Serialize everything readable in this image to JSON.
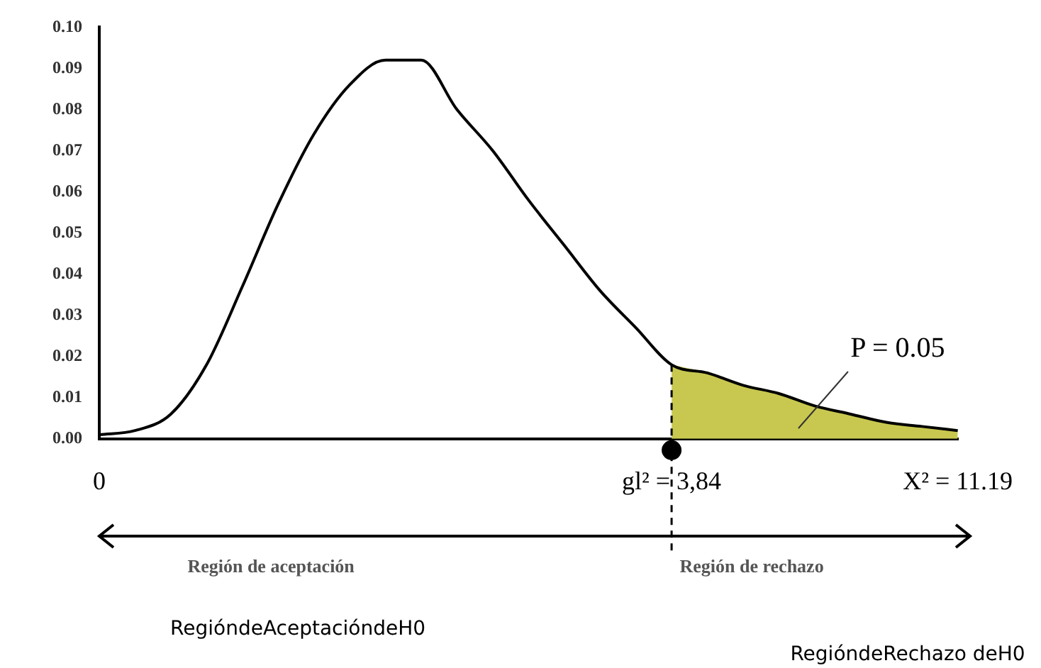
{
  "chart_data": {
    "type": "line",
    "categories": [
      "0",
      null,
      null,
      null,
      null,
      null,
      null,
      null,
      null,
      null,
      null,
      null,
      null,
      null,
      null,
      null,
      "gl² = 3,84",
      null,
      null,
      null,
      null,
      null,
      null,
      null,
      "X² = 11.19"
    ],
    "series": [
      {
        "color": "#000000",
        "values": [
          0.001,
          0.002,
          0.006,
          0.018,
          0.037,
          0.057,
          0.074,
          0.086,
          0.092,
          0.092,
          0.08,
          0.07,
          0.058,
          0.047,
          0.036,
          0.027,
          0.018,
          0.016,
          0.013,
          0.011,
          0.008,
          0.006,
          0.004,
          0.003,
          0.002
        ]
      },
      {
        "type": "area",
        "color": "#c8c850",
        "values": [
          null,
          null,
          null,
          null,
          null,
          null,
          null,
          null,
          null,
          null,
          null,
          null,
          null,
          null,
          null,
          null,
          0.018,
          0.016,
          0.013,
          0.011,
          0.008,
          0.006,
          0.004,
          0.003,
          0.002
        ]
      }
    ],
    "ylim": [
      0,
      0.1
    ],
    "yticks": [
      {
        "value": 0,
        "label": "0.00"
      },
      {
        "value": 0.01,
        "label": "0.01"
      },
      {
        "value": 0.02,
        "label": "0.02"
      },
      {
        "value": 0.03,
        "label": "0.03"
      },
      {
        "value": 0.04,
        "label": "0.04"
      },
      {
        "value": 0.05,
        "label": "0.05"
      },
      {
        "value": 0.06,
        "label": "0.06"
      },
      {
        "value": 0.07,
        "label": "0.07"
      },
      {
        "value": 0.08,
        "label": "0.08"
      },
      {
        "value": 0.09,
        "label": "0.09"
      },
      {
        "value": 0.1,
        "label": "0.10"
      }
    ],
    "grid": false,
    "legend": false,
    "marker": "none",
    "line_style": "solid",
    "ref_lines": [
      {
        "axis": "x",
        "value": "gl² = 3,84",
        "color": "#000000",
        "line_style": "dashed"
      }
    ],
    "annotations": [
      "P = 0.05",
      "Región de aceptación",
      "Región de rechazo",
      "RegióndeAceptacióndeH0",
      "RegióndeRechazo deH0"
    ]
  }
}
